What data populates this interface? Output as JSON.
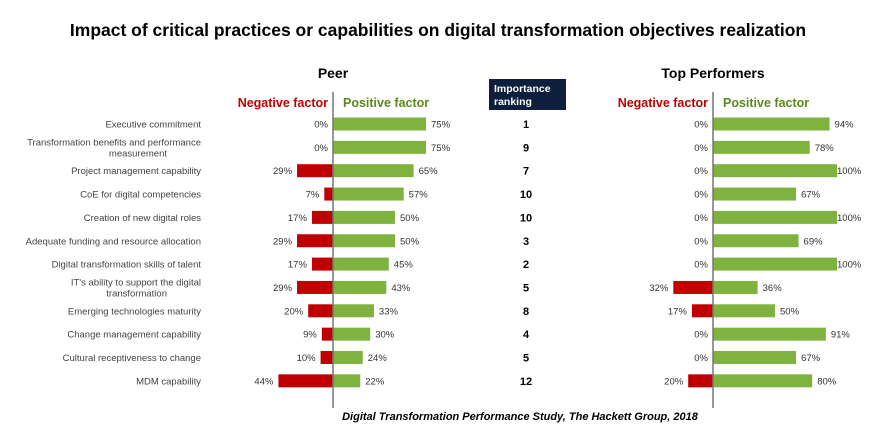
{
  "chart_data": {
    "type": "bar",
    "title": "Impact of critical practices or capabilities on digital transformation objectives realization",
    "source": "Digital Transformation Performance Study, The Hackett Group, 2018",
    "categories": [
      "Executive commitment",
      "Transformation benefits and performance measurement",
      "Project management capability",
      "CoE for digital competencies",
      "Creation of new digital roles",
      "Adequate funding and resource allocation",
      "Digital transformation skills of talent",
      "IT's ability to support the digital transformation",
      "Emerging technologies maturity",
      "Change management capability",
      "Cultural receptiveness to change",
      "MDM capability"
    ],
    "ranking_header": "Importance ranking",
    "importance_ranking": [
      1,
      9,
      7,
      10,
      10,
      3,
      2,
      5,
      8,
      4,
      5,
      12
    ],
    "negative_label": "Negative factor",
    "positive_label": "Positive factor",
    "panels": [
      {
        "name": "Peer",
        "negative": [
          0,
          0,
          29,
          7,
          17,
          29,
          17,
          29,
          20,
          9,
          10,
          44
        ],
        "positive": [
          75,
          75,
          65,
          57,
          50,
          50,
          45,
          43,
          33,
          30,
          24,
          22
        ]
      },
      {
        "name": "Top Performers",
        "negative": [
          0,
          0,
          0,
          0,
          0,
          0,
          0,
          32,
          17,
          0,
          0,
          20
        ],
        "positive": [
          94,
          78,
          100,
          67,
          100,
          69,
          100,
          36,
          50,
          91,
          67,
          80
        ]
      }
    ],
    "unit": "%",
    "colors": {
      "negative": "#c00000",
      "positive": "#7fb23f",
      "negative_text": "#c00000",
      "positive_text": "#5a8a1e",
      "ranking_header_bg": "#0d1f3c"
    }
  }
}
